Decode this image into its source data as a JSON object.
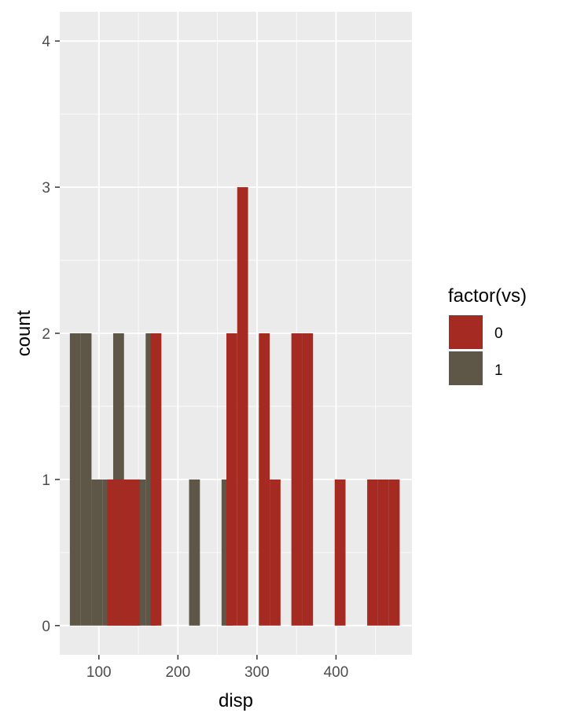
{
  "chart_data": {
    "type": "bar",
    "subtype": "histogram",
    "position": "stack",
    "xlabel": "disp",
    "ylabel": "count",
    "xlim": [
      50.5,
      496
    ],
    "ylim": [
      -0.2,
      4.2
    ],
    "x_ticks": [
      100,
      200,
      300,
      400
    ],
    "y_ticks": [
      0,
      1,
      2,
      3,
      4
    ],
    "grid": true,
    "legend": {
      "title": "factor(vs)",
      "position": "right"
    },
    "series": [
      {
        "name": "0",
        "color": "#A52A22",
        "bins": [
          {
            "x0": 110.6,
            "x1": 124.3,
            "count": 1
          },
          {
            "x0": 124.3,
            "x1": 138.0,
            "count": 1
          },
          {
            "x0": 138.0,
            "x1": 151.7,
            "count": 1
          },
          {
            "x0": 165.4,
            "x1": 179.1,
            "count": 2
          },
          {
            "x0": 261.3,
            "x1": 275.0,
            "count": 2
          },
          {
            "x0": 275.0,
            "x1": 288.7,
            "count": 3
          },
          {
            "x0": 302.4,
            "x1": 316.1,
            "count": 2
          },
          {
            "x0": 316.1,
            "x1": 329.8,
            "count": 1
          },
          {
            "x0": 343.5,
            "x1": 357.2,
            "count": 2
          },
          {
            "x0": 357.2,
            "x1": 370.9,
            "count": 2
          },
          {
            "x0": 398.3,
            "x1": 412.0,
            "count": 1
          },
          {
            "x0": 439.4,
            "x1": 453.1,
            "count": 1
          },
          {
            "x0": 453.1,
            "x1": 466.8,
            "count": 1
          },
          {
            "x0": 466.8,
            "x1": 480.5,
            "count": 1
          }
        ]
      },
      {
        "name": "1",
        "color": "#5E5646",
        "bins": [
          {
            "x0": 63.3,
            "x1": 77.0,
            "count": 2
          },
          {
            "x0": 77.0,
            "x1": 90.7,
            "count": 2
          },
          {
            "x0": 90.7,
            "x1": 104.4,
            "count": 1
          },
          {
            "x0": 104.4,
            "x1": 118.1,
            "count": 1
          },
          {
            "x0": 118.1,
            "x1": 131.8,
            "count": 2
          },
          {
            "x0": 131.8,
            "x1": 145.5,
            "count": 1
          },
          {
            "x0": 145.5,
            "x1": 159.2,
            "count": 1
          },
          {
            "x0": 159.2,
            "x1": 172.9,
            "count": 2
          },
          {
            "x0": 214.1,
            "x1": 227.8,
            "count": 1
          },
          {
            "x0": 255.2,
            "x1": 268.9,
            "count": 1
          }
        ]
      }
    ]
  }
}
